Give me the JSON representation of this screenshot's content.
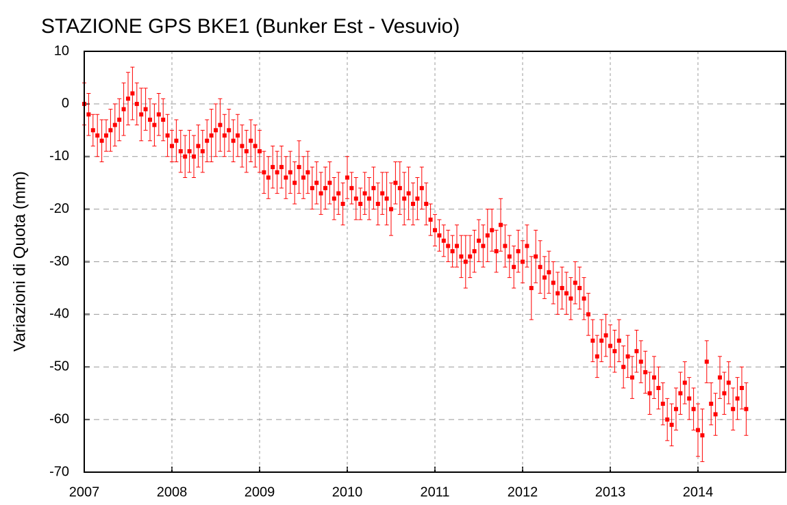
{
  "chart_data": {
    "type": "scatter",
    "title": "STAZIONE GPS BKE1 (Bunker Est - Vesuvio)",
    "y_label": "Variazioni di Quota (mm)",
    "color": "#ff0000",
    "xlim": [
      2007,
      2015
    ],
    "ylim": [
      -70,
      10
    ],
    "xticks": [
      2007,
      2008,
      2009,
      2010,
      2011,
      2012,
      2013,
      2014
    ],
    "yticks": [
      -70,
      -60,
      -50,
      -40,
      -30,
      -20,
      -10,
      0,
      10
    ],
    "grid": true,
    "x": [
      2007.0,
      2007.05,
      2007.1,
      2007.15,
      2007.2,
      2007.25,
      2007.3,
      2007.35,
      2007.4,
      2007.45,
      2007.5,
      2007.55,
      2007.6,
      2007.65,
      2007.7,
      2007.75,
      2007.8,
      2007.85,
      2007.9,
      2007.95,
      2008.0,
      2008.05,
      2008.1,
      2008.15,
      2008.2,
      2008.25,
      2008.3,
      2008.35,
      2008.4,
      2008.45,
      2008.5,
      2008.55,
      2008.6,
      2008.65,
      2008.7,
      2008.75,
      2008.8,
      2008.85,
      2008.9,
      2008.95,
      2009.0,
      2009.05,
      2009.1,
      2009.15,
      2009.2,
      2009.25,
      2009.3,
      2009.35,
      2009.4,
      2009.45,
      2009.5,
      2009.55,
      2009.6,
      2009.65,
      2009.7,
      2009.75,
      2009.8,
      2009.85,
      2009.9,
      2009.95,
      2010.0,
      2010.05,
      2010.1,
      2010.15,
      2010.2,
      2010.25,
      2010.3,
      2010.35,
      2010.4,
      2010.45,
      2010.5,
      2010.55,
      2010.6,
      2010.65,
      2010.7,
      2010.75,
      2010.8,
      2010.85,
      2010.9,
      2010.95,
      2011.0,
      2011.05,
      2011.1,
      2011.15,
      2011.2,
      2011.25,
      2011.3,
      2011.35,
      2011.4,
      2011.45,
      2011.5,
      2011.55,
      2011.6,
      2011.65,
      2011.7,
      2011.75,
      2011.8,
      2011.85,
      2011.9,
      2011.95,
      2012.0,
      2012.05,
      2012.1,
      2012.15,
      2012.2,
      2012.25,
      2012.3,
      2012.35,
      2012.4,
      2012.45,
      2012.5,
      2012.55,
      2012.6,
      2012.65,
      2012.7,
      2012.75,
      2012.8,
      2012.85,
      2012.9,
      2012.95,
      2013.0,
      2013.05,
      2013.1,
      2013.15,
      2013.2,
      2013.25,
      2013.3,
      2013.35,
      2013.4,
      2013.45,
      2013.5,
      2013.55,
      2013.6,
      2013.65,
      2013.7,
      2013.75,
      2013.8,
      2013.85,
      2013.9,
      2013.95,
      2014.0,
      2014.05,
      2014.1,
      2014.15,
      2014.2,
      2014.25,
      2014.3,
      2014.35,
      2014.4,
      2014.45,
      2014.5,
      2014.55
    ],
    "values": [
      0,
      -2,
      -5,
      -6,
      -7,
      -6,
      -5,
      -4,
      -3,
      -1,
      1,
      2,
      0,
      -2,
      -1,
      -3,
      -4,
      -2,
      -3,
      -6,
      -8,
      -7,
      -9,
      -10,
      -9,
      -10,
      -8,
      -9,
      -7,
      -6,
      -5,
      -4,
      -6,
      -5,
      -7,
      -6,
      -8,
      -9,
      -7,
      -8,
      -9,
      -13,
      -14,
      -12,
      -13,
      -12,
      -14,
      -13,
      -15,
      -12,
      -14,
      -13,
      -16,
      -15,
      -17,
      -16,
      -15,
      -18,
      -17,
      -19,
      -14,
      -16,
      -18,
      -19,
      -17,
      -18,
      -16,
      -19,
      -17,
      -18,
      -20,
      -15,
      -16,
      -18,
      -17,
      -19,
      -18,
      -16,
      -19,
      -22,
      -24,
      -25,
      -26,
      -27,
      -28,
      -27,
      -29,
      -30,
      -29,
      -28,
      -26,
      -27,
      -25,
      -24,
      -28,
      -23,
      -27,
      -29,
      -31,
      -28,
      -30,
      -27,
      -35,
      -29,
      -31,
      -33,
      -32,
      -34,
      -36,
      -35,
      -36,
      -37,
      -34,
      -35,
      -37,
      -40,
      -45,
      -48,
      -45,
      -44,
      -46,
      -47,
      -45,
      -50,
      -48,
      -52,
      -47,
      -49,
      -51,
      -55,
      -52,
      -54,
      -57,
      -60,
      -61,
      -58,
      -55,
      -53,
      -56,
      -58,
      -62,
      -63,
      -49,
      -57,
      -59,
      -52,
      -55,
      -53,
      -58,
      -56,
      -54,
      -58
    ],
    "errors": [
      4,
      4,
      3,
      4,
      4,
      3,
      4,
      4,
      4,
      5,
      5,
      5,
      4,
      5,
      4,
      4,
      4,
      4,
      4,
      4,
      3,
      4,
      4,
      4,
      4,
      4,
      4,
      4,
      4,
      5,
      5,
      5,
      4,
      4,
      4,
      4,
      4,
      4,
      4,
      4,
      4,
      4,
      4,
      4,
      4,
      4,
      4,
      4,
      4,
      5,
      4,
      4,
      4,
      4,
      4,
      4,
      4,
      4,
      4,
      4,
      4,
      3,
      4,
      3,
      4,
      4,
      4,
      4,
      4,
      5,
      5,
      4,
      5,
      5,
      5,
      4,
      4,
      4,
      4,
      3,
      3,
      3,
      3,
      3,
      3,
      4,
      4,
      5,
      4,
      4,
      4,
      4,
      5,
      4,
      4,
      5,
      4,
      4,
      4,
      4,
      4,
      4,
      6,
      5,
      5,
      4,
      4,
      4,
      4,
      4,
      4,
      4,
      4,
      4,
      4,
      4,
      4,
      4,
      4,
      4,
      4,
      4,
      4,
      4,
      4,
      4,
      4,
      4,
      4,
      4,
      4,
      4,
      4,
      4,
      4,
      4,
      4,
      4,
      4,
      4,
      5,
      5,
      4,
      4,
      4,
      4,
      4,
      4,
      4,
      4,
      4,
      5
    ]
  }
}
